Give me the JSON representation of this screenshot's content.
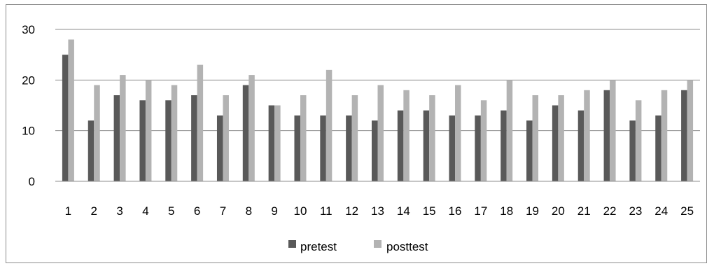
{
  "chart_data": {
    "type": "bar",
    "title": "",
    "xlabel": "",
    "ylabel": "",
    "categories": [
      "1",
      "2",
      "3",
      "4",
      "5",
      "6",
      "7",
      "8",
      "9",
      "10",
      "11",
      "12",
      "13",
      "14",
      "15",
      "16",
      "17",
      "18",
      "19",
      "20",
      "21",
      "22",
      "23",
      "24",
      "25"
    ],
    "series": [
      {
        "name": "pretest",
        "color": "#595959",
        "values": [
          25,
          12,
          17,
          16,
          16,
          17,
          13,
          19,
          15,
          13,
          13,
          13,
          12,
          14,
          14,
          13,
          13,
          14,
          12,
          15,
          14,
          18,
          12,
          13,
          18
        ]
      },
      {
        "name": "posttest",
        "color": "#b3b3b3",
        "values": [
          28,
          19,
          21,
          20,
          19,
          23,
          17,
          21,
          15,
          17,
          22,
          17,
          19,
          18,
          17,
          19,
          16,
          20,
          17,
          17,
          18,
          20,
          16,
          18,
          20
        ]
      }
    ],
    "ylim": [
      0,
      30
    ],
    "yticks": [
      0,
      10,
      20,
      30
    ],
    "grid": true,
    "legend_position": "bottom"
  }
}
